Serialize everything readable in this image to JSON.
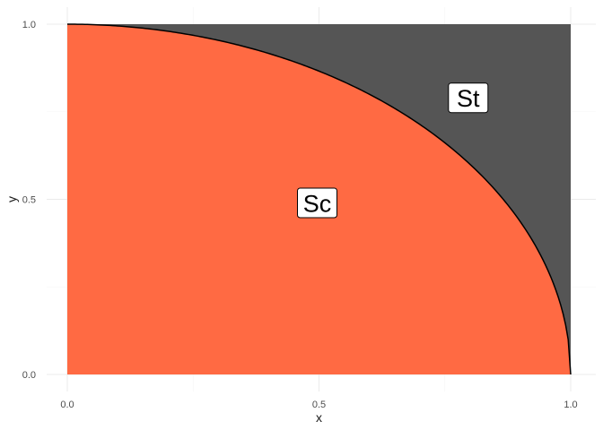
{
  "chart_data": {
    "type": "area",
    "title": "",
    "xlabel": "x",
    "ylabel": "y",
    "xlim": [
      0,
      1
    ],
    "ylim": [
      0,
      1
    ],
    "x_ticks": [
      0.0,
      0.5,
      1.0
    ],
    "y_ticks": [
      0.0,
      0.5,
      1.0
    ],
    "x_tick_labels": [
      "0.0",
      "0.5",
      "1.0"
    ],
    "y_tick_labels": [
      "0.0",
      "0.5",
      "1.0"
    ],
    "grid": true,
    "legend": "none",
    "curve": {
      "description_of_function": "quarter ellipse y = sqrt(1 - x^2)",
      "x": [
        0.0,
        0.1,
        0.2,
        0.3,
        0.4,
        0.5,
        0.6,
        0.7,
        0.8,
        0.9,
        0.95,
        0.99,
        1.0
      ],
      "y": [
        1.0,
        0.995,
        0.98,
        0.954,
        0.917,
        0.866,
        0.8,
        0.714,
        0.6,
        0.436,
        0.312,
        0.141,
        0.0
      ]
    },
    "regions": [
      {
        "name": "Sc",
        "color": "#FF6A43",
        "position": "below curve",
        "label_x": 0.5,
        "label_y": 0.5
      },
      {
        "name": "St",
        "color": "#555555",
        "position": "above curve",
        "label_x": 0.8,
        "label_y": 0.8
      }
    ]
  }
}
